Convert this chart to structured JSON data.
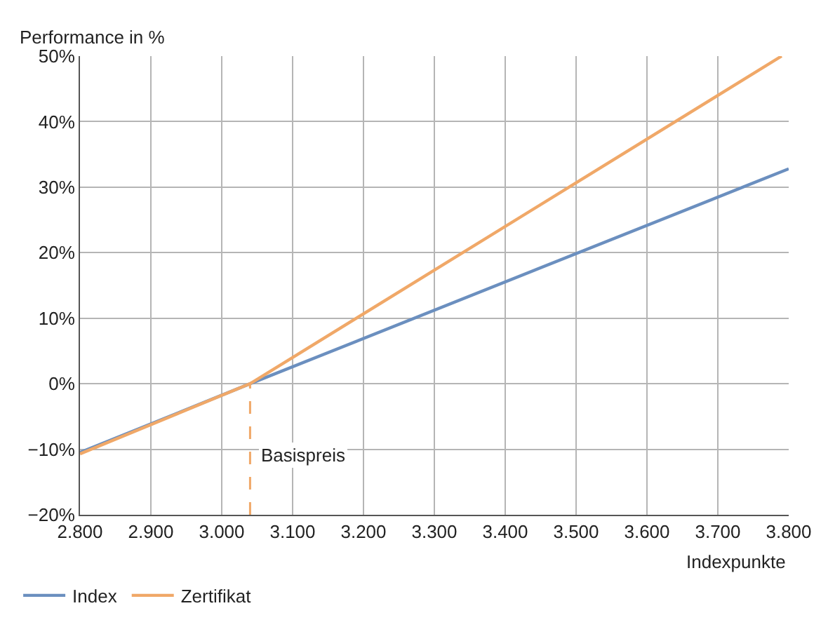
{
  "chart_data": {
    "type": "line",
    "ylabel": "Performance in %",
    "xlabel": "Indexpunkte",
    "xlim": [
      2800,
      3800
    ],
    "ylim": [
      -20,
      50
    ],
    "xticks": [
      {
        "value": 2800,
        "label": "2.800"
      },
      {
        "value": 2900,
        "label": "2.900"
      },
      {
        "value": 3000,
        "label": "3.000"
      },
      {
        "value": 3100,
        "label": "3.100"
      },
      {
        "value": 3200,
        "label": "3.200"
      },
      {
        "value": 3300,
        "label": "3.300"
      },
      {
        "value": 3400,
        "label": "3.400"
      },
      {
        "value": 3500,
        "label": "3.500"
      },
      {
        "value": 3600,
        "label": "3.600"
      },
      {
        "value": 3700,
        "label": "3.700"
      },
      {
        "value": 3800,
        "label": "3.800"
      }
    ],
    "yticks": [
      {
        "value": -20,
        "label": "−20%"
      },
      {
        "value": -10,
        "label": "−10%"
      },
      {
        "value": 0,
        "label": "0%"
      },
      {
        "value": 10,
        "label": "10%"
      },
      {
        "value": 20,
        "label": "20%"
      },
      {
        "value": 30,
        "label": "30%"
      },
      {
        "value": 40,
        "label": "40%"
      },
      {
        "value": 50,
        "label": "50%"
      }
    ],
    "series": [
      {
        "name": "Index",
        "color": "#6b8fbf",
        "x": [
          2800,
          3040,
          3800
        ],
        "values": [
          -10.5,
          0,
          32.8
        ]
      },
      {
        "name": "Zertifikat",
        "color": "#f0a868",
        "x": [
          2800,
          3040,
          3790
        ],
        "values": [
          -10.7,
          0,
          50
        ]
      },
      {
        "color": "#f0a868",
        "x": [
          3040,
          3040
        ],
        "values": [
          -20,
          0
        ],
        "line_style": "dashed"
      }
    ],
    "annotations": [
      "Basispreis"
    ],
    "grid": true,
    "legend": "bottom left",
    "line_style": "solid",
    "marker": "none"
  }
}
